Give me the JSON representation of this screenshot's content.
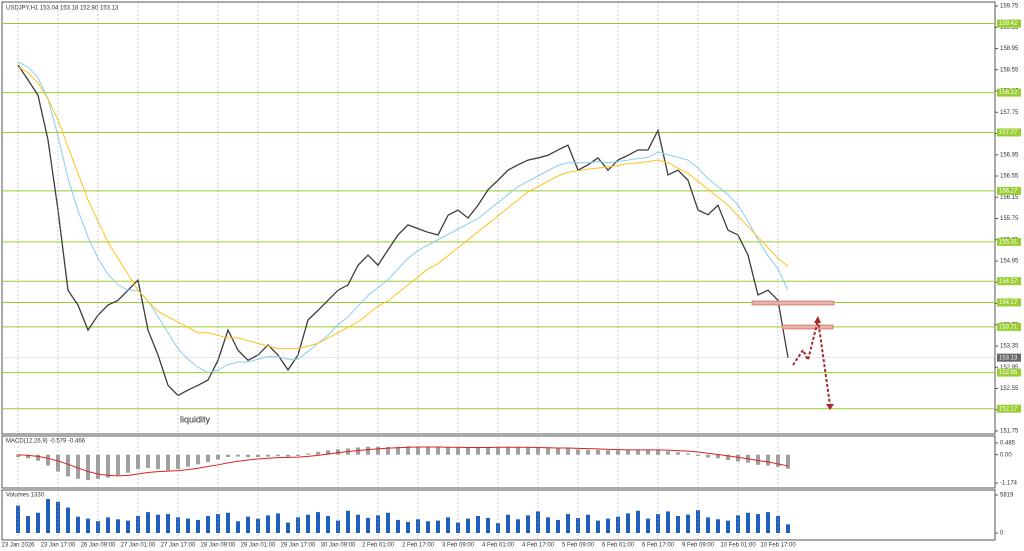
{
  "chart_data": [
    {
      "type": "line",
      "title": "USDJPY,H1  153.04 153.18 152.80 153.13",
      "annotation": "liquidity",
      "ylim": [
        151.75,
        159.75
      ],
      "yticks": [
        159.75,
        159.35,
        158.95,
        158.55,
        158.15,
        157.75,
        157.35,
        156.95,
        156.55,
        156.15,
        155.75,
        155.35,
        154.95,
        154.55,
        154.15,
        153.75,
        153.35,
        152.95,
        152.55,
        152.15,
        151.75
      ],
      "hlines": [
        159.42,
        158.12,
        157.37,
        156.27,
        155.31,
        154.57,
        154.17,
        153.71,
        152.85,
        152.17
      ],
      "hline_color": "#9acd32",
      "last_price": 153.13,
      "series": [
        {
          "color": "#3d3d3d",
          "values": [
            158.64,
            158.36,
            158.07,
            157.23,
            155.91,
            154.4,
            154.12,
            153.65,
            153.93,
            154.12,
            154.21,
            154.4,
            154.59,
            153.65,
            153.18,
            152.61,
            152.42,
            152.52,
            152.61,
            152.71,
            153.08,
            153.65,
            153.27,
            153.08,
            153.18,
            153.37,
            153.18,
            152.9,
            153.18,
            153.84,
            154.02,
            154.21,
            154.4,
            154.5,
            154.87,
            155.06,
            154.87,
            155.16,
            155.44,
            155.63,
            155.56,
            155.49,
            155.44,
            155.81,
            155.91,
            155.76,
            156.0,
            156.29,
            156.47,
            156.66,
            156.76,
            156.85,
            156.89,
            156.94,
            157.04,
            157.13,
            156.66,
            156.76,
            156.89,
            156.66,
            156.85,
            156.94,
            157.04,
            157.04,
            157.41,
            156.57,
            156.66,
            156.47,
            155.91,
            155.82,
            156.0,
            155.53,
            155.44,
            155.06,
            154.31,
            154.4,
            154.21,
            153.13
          ]
        },
        {
          "color": "#87ceeb",
          "values": [
            158.7,
            158.6,
            158.4,
            158.0,
            157.3,
            156.5,
            155.9,
            155.4,
            155.0,
            154.7,
            154.5,
            154.4,
            154.4,
            154.2,
            153.9,
            153.6,
            153.3,
            153.1,
            152.95,
            152.85,
            152.9,
            153.0,
            153.05,
            153.05,
            153.1,
            153.15,
            153.15,
            153.1,
            153.1,
            153.25,
            153.4,
            153.55,
            153.75,
            153.9,
            154.1,
            154.3,
            154.45,
            154.6,
            154.8,
            155.0,
            155.15,
            155.25,
            155.35,
            155.45,
            155.55,
            155.65,
            155.75,
            155.9,
            156.05,
            156.2,
            156.35,
            156.45,
            156.55,
            156.65,
            156.75,
            156.8,
            156.8,
            156.8,
            156.82,
            156.8,
            156.82,
            156.85,
            156.88,
            156.9,
            157.0,
            156.95,
            156.9,
            156.85,
            156.7,
            156.5,
            156.35,
            156.2,
            156.0,
            155.7,
            155.35,
            155.05,
            154.8,
            154.4
          ]
        },
        {
          "color": "#ffc21a",
          "values": [
            158.6,
            158.5,
            158.3,
            158.0,
            157.6,
            157.1,
            156.6,
            156.1,
            155.7,
            155.3,
            155.0,
            154.7,
            154.4,
            154.2,
            154.0,
            153.9,
            153.8,
            153.7,
            153.6,
            153.6,
            153.55,
            153.5,
            153.5,
            153.45,
            153.4,
            153.35,
            153.3,
            153.3,
            153.3,
            153.35,
            153.4,
            153.5,
            153.6,
            153.7,
            153.8,
            153.95,
            154.1,
            154.2,
            154.35,
            154.5,
            154.65,
            154.8,
            154.9,
            155.05,
            155.2,
            155.35,
            155.5,
            155.65,
            155.8,
            155.95,
            156.1,
            156.25,
            156.35,
            156.45,
            156.55,
            156.62,
            156.65,
            156.68,
            156.7,
            156.72,
            156.75,
            156.78,
            156.8,
            156.82,
            156.85,
            156.8,
            156.7,
            156.6,
            156.45,
            156.3,
            156.15,
            156.0,
            155.8,
            155.6,
            155.4,
            155.2,
            155.0,
            154.85
          ]
        }
      ]
    },
    {
      "type": "bar",
      "title": "MACD(12,26,9) -0.579 -0.466",
      "ylim": [
        -1.174,
        0.485
      ],
      "yticks": [
        0.485,
        {
          "value": 0,
          "label": "0.00"
        },
        -1.174
      ],
      "series": [
        {
          "color": "#a0a0a0",
          "values": [
            -0.1,
            -0.15,
            -0.25,
            -0.45,
            -0.7,
            -0.9,
            -1.0,
            -1.05,
            -1.0,
            -0.95,
            -0.85,
            -0.75,
            -0.6,
            -0.55,
            -0.6,
            -0.65,
            -0.6,
            -0.5,
            -0.4,
            -0.3,
            -0.2,
            -0.1,
            -0.08,
            -0.1,
            -0.1,
            -0.08,
            -0.06,
            -0.08,
            -0.05,
            0.05,
            0.12,
            0.18,
            0.22,
            0.26,
            0.3,
            0.33,
            0.33,
            0.32,
            0.33,
            0.35,
            0.34,
            0.32,
            0.3,
            0.3,
            0.3,
            0.29,
            0.3,
            0.31,
            0.32,
            0.33,
            0.32,
            0.3,
            0.28,
            0.27,
            0.27,
            0.26,
            0.22,
            0.2,
            0.2,
            0.18,
            0.18,
            0.18,
            0.19,
            0.2,
            0.22,
            0.15,
            0.1,
            0.05,
            -0.05,
            -0.12,
            -0.15,
            -0.22,
            -0.28,
            -0.33,
            -0.42,
            -0.45,
            -0.5,
            -0.579
          ]
        },
        {
          "type": "line",
          "color": "#e02020",
          "values": [
            0.0,
            -0.03,
            -0.07,
            -0.15,
            -0.26,
            -0.4,
            -0.55,
            -0.7,
            -0.8,
            -0.86,
            -0.88,
            -0.86,
            -0.8,
            -0.74,
            -0.7,
            -0.68,
            -0.66,
            -0.62,
            -0.56,
            -0.49,
            -0.42,
            -0.34,
            -0.27,
            -0.22,
            -0.18,
            -0.15,
            -0.12,
            -0.11,
            -0.1,
            -0.07,
            -0.03,
            0.03,
            0.08,
            0.13,
            0.17,
            0.21,
            0.24,
            0.27,
            0.29,
            0.31,
            0.32,
            0.32,
            0.32,
            0.31,
            0.31,
            0.3,
            0.3,
            0.3,
            0.31,
            0.31,
            0.31,
            0.31,
            0.3,
            0.29,
            0.28,
            0.28,
            0.26,
            0.25,
            0.24,
            0.22,
            0.21,
            0.2,
            0.2,
            0.2,
            0.2,
            0.19,
            0.17,
            0.15,
            0.11,
            0.06,
            0.01,
            -0.05,
            -0.11,
            -0.17,
            -0.24,
            -0.3,
            -0.38,
            -0.466
          ]
        }
      ]
    },
    {
      "type": "bar",
      "title": "Volumes 1330",
      "ylim": [
        0,
        5819
      ],
      "yticks": [
        5819,
        0
      ],
      "categories": [
        "23 Jan 2026",
        null,
        null,
        null,
        "23 Jan 17:00",
        null,
        null,
        null,
        "26 Jan 09:00",
        null,
        null,
        null,
        "27 Jan 01:00",
        null,
        null,
        null,
        "27 Jan 17:00",
        null,
        null,
        null,
        "28 Jan 09:00",
        null,
        null,
        null,
        "29 Jan 01:00",
        null,
        null,
        null,
        "29 Jan 17:00",
        null,
        null,
        null,
        "30 Jan 09:00",
        null,
        null,
        null,
        "2 Feb 01:00",
        null,
        null,
        null,
        "2 Feb 17:00",
        null,
        null,
        null,
        "3 Feb 09:00",
        null,
        null,
        null,
        "4 Feb 01:00",
        null,
        null,
        null,
        "4 Feb 17:00",
        null,
        null,
        null,
        "5 Feb 09:00",
        null,
        null,
        null,
        "6 Feb 01:00",
        null,
        null,
        null,
        "6 Feb 17:00",
        null,
        null,
        null,
        "9 Feb 09:00",
        null,
        null,
        null,
        "10 Feb 01:00",
        null,
        null,
        null,
        "10 Feb 17:00",
        null
      ],
      "series": [
        {
          "color": "#1f5fbf",
          "values": [
            4200,
            2600,
            3100,
            5200,
            4800,
            3900,
            2500,
            2200,
            1800,
            2400,
            2100,
            1900,
            2600,
            3200,
            2800,
            2900,
            2400,
            2200,
            2000,
            2600,
            2900,
            3100,
            1800,
            2500,
            2200,
            2700,
            3000,
            1600,
            2400,
            2800,
            3200,
            2600,
            1900,
            3400,
            2800,
            2300,
            2700,
            3100,
            2000,
            1700,
            2100,
            1800,
            1900,
            2400,
            1600,
            2200,
            2600,
            2300,
            1500,
            2800,
            2100,
            2700,
            3300,
            2400,
            2000,
            2900,
            2300,
            2800,
            1900,
            2200,
            2500,
            3000,
            3400,
            2200,
            2900,
            3300,
            2600,
            2800,
            3500,
            2400,
            2100,
            1900,
            2700,
            3100,
            2900,
            3200,
            2600,
            1330
          ]
        }
      ]
    }
  ]
}
